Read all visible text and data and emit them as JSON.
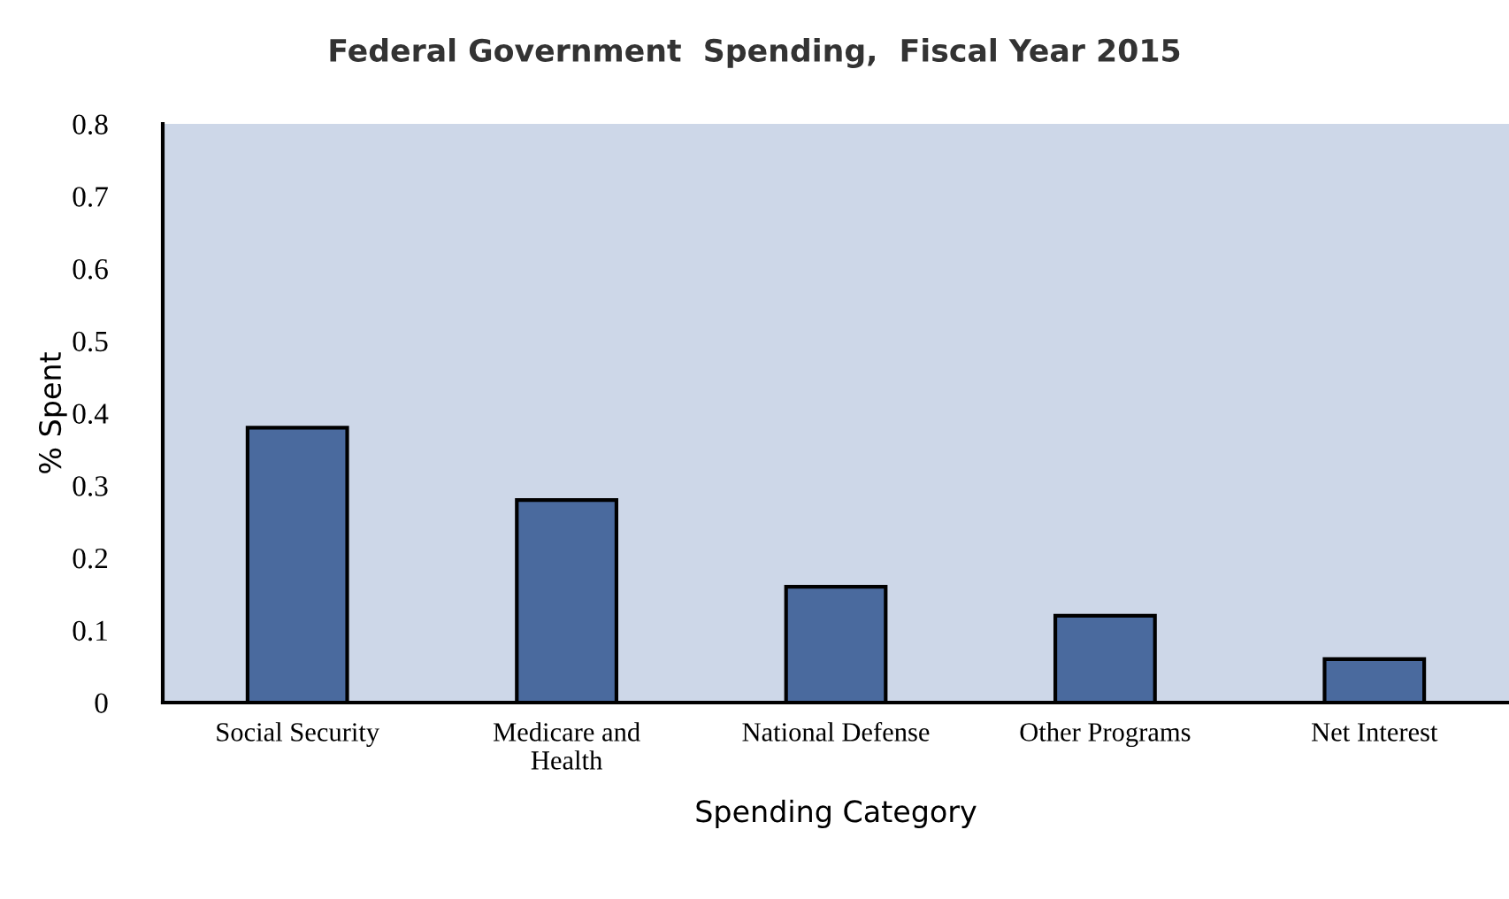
{
  "chart_data": {
    "type": "bar",
    "title": "Federal Government  Spending,  Fiscal Year 2015",
    "xlabel": "Spending Category",
    "ylabel": "% Spent",
    "categories": [
      "Social Security",
      "Medicare and\nHealth",
      "National Defense",
      "Other Programs",
      "Net Interest"
    ],
    "values": [
      0.38,
      0.28,
      0.16,
      0.12,
      0.06
    ],
    "color": "#4a6a9e",
    "ylim": [
      0,
      0.8
    ],
    "yticks": [
      0,
      0.1,
      0.2,
      0.3,
      0.4,
      0.5,
      0.6,
      0.7,
      0.8
    ],
    "grid": false
  }
}
